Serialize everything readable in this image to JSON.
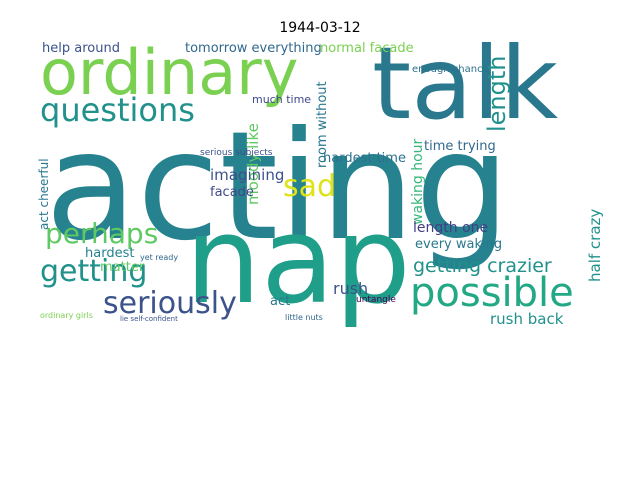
{
  "chart_data": {
    "type": "wordcloud",
    "title": "1944-03-12",
    "words": [
      {
        "text": "acting",
        "color": "#26828e"
      },
      {
        "text": "nap",
        "color": "#1f9e89"
      },
      {
        "text": "talk",
        "color": "#2a788e"
      },
      {
        "text": "ordinary",
        "color": "#7ad151"
      },
      {
        "text": "questions",
        "color": "#21918c"
      },
      {
        "text": "possible",
        "color": "#22a884"
      },
      {
        "text": "seriously",
        "color": "#3b528b"
      },
      {
        "text": "getting",
        "color": "#21918c"
      },
      {
        "text": "perhaps",
        "color": "#5ec962"
      },
      {
        "text": "sad",
        "color": "#dde318"
      },
      {
        "text": "getting crazier",
        "color": "#21918c"
      },
      {
        "text": "length",
        "color": "#21918c"
      },
      {
        "text": "room without",
        "color": "#2a788e"
      },
      {
        "text": "moody like",
        "color": "#5ec962"
      },
      {
        "text": "waking hour",
        "color": "#35b779"
      },
      {
        "text": "act cheerful",
        "color": "#2a788e"
      },
      {
        "text": "half crazy",
        "color": "#21918c"
      },
      {
        "text": "help around",
        "color": "#3b528b"
      },
      {
        "text": "tomorrow everything",
        "color": "#31688e"
      },
      {
        "text": "normal facade",
        "color": "#7ad151"
      },
      {
        "text": "enough chance",
        "color": "#2c728e"
      },
      {
        "text": "much time",
        "color": "#3e4a89"
      },
      {
        "text": "hardest time",
        "color": "#2c728e"
      },
      {
        "text": "time trying",
        "color": "#31688e"
      },
      {
        "text": "imagining",
        "color": "#3b528b"
      },
      {
        "text": "facade",
        "color": "#3e4a89"
      },
      {
        "text": "length one",
        "color": "#433e85"
      },
      {
        "text": "every waking",
        "color": "#2a788e"
      },
      {
        "text": "hardest",
        "color": "#26828e"
      },
      {
        "text": "matter",
        "color": "#5ec962"
      },
      {
        "text": "rush",
        "color": "#3b528b"
      },
      {
        "text": "rush back",
        "color": "#21918c"
      },
      {
        "text": "act",
        "color": "#2a788e"
      },
      {
        "text": "ordinary girls",
        "color": "#7ad151"
      },
      {
        "text": "lie self-confident",
        "color": "#3b528b"
      },
      {
        "text": "untangle",
        "color": "#440154"
      },
      {
        "text": "little nuts",
        "color": "#31688e"
      },
      {
        "text": "serious subjects",
        "color": "#3b528b"
      },
      {
        "text": "yet ready",
        "color": "#31688e"
      }
    ]
  }
}
